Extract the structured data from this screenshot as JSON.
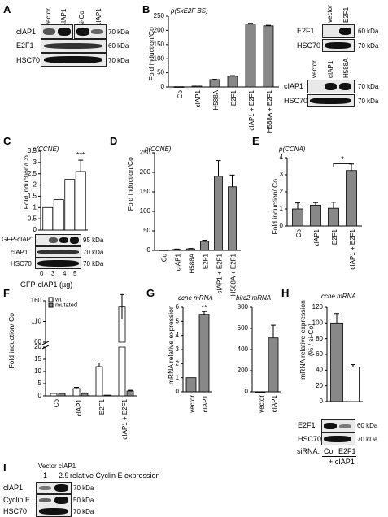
{
  "panels": {
    "A": {
      "letter": "A",
      "lanes": [
        "vector",
        "cIAP1",
        "si-Co",
        "si-cIAP1"
      ],
      "rows": [
        "cIAP1",
        "E2F1",
        "HSC70"
      ],
      "sizes": [
        "70 kDa",
        "60 kDa",
        "70 kDa"
      ]
    },
    "B": {
      "letter": "B",
      "annotation": "p(5xE2F BS)",
      "ylabel": "Fold induction/Co",
      "blot1": {
        "lanes": [
          "vector",
          "E2F1"
        ],
        "rows": [
          "E2F1",
          "HSC70"
        ],
        "sizes": [
          "60 kDa",
          "70 kDa"
        ]
      },
      "blot2": {
        "lanes": [
          "vector",
          "cIAP1",
          "H588A"
        ],
        "rows": [
          "cIAP1",
          "HSC70"
        ],
        "sizes": [
          "70 kDa",
          "70 kDa"
        ]
      }
    },
    "C": {
      "letter": "C",
      "annotation": "p(CCNE)",
      "ylabel": "Fold induction/Co",
      "xlabel": "GFP-cIAP1 (µg)",
      "blot": {
        "rows": [
          "GFP-cIAP1",
          "cIAP1",
          "HSC70"
        ],
        "sizes": [
          "95 kDa",
          "70 kDa",
          "70 kDa"
        ]
      }
    },
    "D": {
      "letter": "D",
      "annotation": "p(CCNE)",
      "ylabel": "Fold induction/Co"
    },
    "E": {
      "letter": "E",
      "annotation": "p(CCNA)",
      "ylabel": "Fold induction/ Co",
      "sig": "*"
    },
    "F": {
      "letter": "F",
      "ylabel": "Fold induction/ Co"
    },
    "G": {
      "letter": "G",
      "ylabel": "mRNA relative expression",
      "sub1": "ccne mRNA",
      "sub2": "birc2 mRNA",
      "sig": "**"
    },
    "H": {
      "letter": "H",
      "ylabel": "mRNA relative expression (% / si-Co)",
      "sub": "ccne mRNA",
      "blot": {
        "rows": [
          "E2F1",
          "HSC70"
        ],
        "sizes": [
          "60 kDa",
          "70 kDa"
        ]
      },
      "sirna_label": "siRNA:",
      "sirna_lanes": [
        "Co",
        "E2F1"
      ],
      "sirna_extra": "+ cIAP1"
    },
    "I": {
      "letter": "I",
      "header": "Vector cIAP1",
      "quant_values": [
        "1",
        "2.9"
      ],
      "quant_label": "relative Cyclin E expression",
      "rows": [
        "cIAP1",
        "Cyclin E",
        "HSC70"
      ],
      "sizes": [
        "70 kDa",
        "50 kDa",
        "70 kDa"
      ]
    }
  },
  "chart_data": [
    {
      "panel": "B",
      "type": "bar",
      "categories": [
        "Co",
        "cIAP1",
        "H588A",
        "E2F1",
        "cIAP1 + E2F1",
        "H588A + E2F1"
      ],
      "values": [
        1,
        3,
        26,
        38,
        222,
        216
      ],
      "errors": [
        0,
        0,
        1,
        2,
        3,
        2
      ],
      "ylabel": "Fold induction/Co",
      "ylim": [
        0,
        250
      ],
      "yticks": [
        0,
        50,
        100,
        150,
        200,
        250
      ]
    },
    {
      "panel": "C",
      "type": "bar",
      "categories": [
        "0",
        "3",
        "4",
        "5"
      ],
      "values": [
        1,
        1.35,
        2.25,
        2.6
      ],
      "errors": [
        0,
        0,
        0,
        0.5
      ],
      "ylabel": "Fold induction/Co",
      "xlabel": "GFP-cIAP1 (µg)",
      "ylim": [
        0,
        3.5
      ],
      "yticks": [
        0,
        0.5,
        1,
        1.5,
        2,
        2.5,
        3,
        3.5
      ],
      "annotations": [
        "***"
      ]
    },
    {
      "panel": "D",
      "type": "bar",
      "categories": [
        "Co",
        "cIAP1",
        "H588A",
        "E2F1",
        "cIAP1 + E2F1",
        "H588A + E2F1"
      ],
      "values": [
        1,
        2.5,
        4,
        23,
        190,
        163
      ],
      "errors": [
        0,
        1,
        1,
        3,
        40,
        30
      ],
      "ylabel": "Fold induction/Co",
      "ylim": [
        0,
        250
      ],
      "yticks": [
        0,
        50,
        100,
        150,
        200,
        250
      ]
    },
    {
      "panel": "E",
      "type": "bar",
      "categories": [
        "Co",
        "cIAP1",
        "E2F1",
        "cIAP1 + E2F1"
      ],
      "values": [
        1,
        1.22,
        1.04,
        3.25
      ],
      "errors": [
        0.35,
        0.15,
        0.35,
        0.38
      ],
      "ylabel": "Fold induction/ Co",
      "ylim": [
        0,
        4
      ],
      "yticks": [
        0,
        1,
        2,
        3,
        4
      ],
      "annotations": [
        "*"
      ]
    },
    {
      "panel": "F",
      "type": "bar",
      "categories": [
        "Co",
        "cIAP1",
        "E2F1",
        "cIAP1 + E2F1"
      ],
      "series": [
        {
          "name": "wt",
          "values": [
            1,
            3,
            12,
            145
          ],
          "errors": [
            0,
            0.5,
            1.5,
            30
          ]
        },
        {
          "name": "mutated",
          "values": [
            1,
            1,
            0.3,
            2
          ],
          "errors": [
            0,
            0.2,
            0,
            0.3
          ]
        }
      ],
      "ylabel": "Fold induction/ Co",
      "ylim": [
        0,
        175
      ],
      "yticks": [
        0,
        5,
        10,
        15,
        20,
        60,
        110,
        160
      ],
      "broken_axis": true
    },
    {
      "panel": "G1",
      "type": "bar",
      "title": "ccne mRNA",
      "categories": [
        "vector",
        "cIAP1"
      ],
      "values": [
        1,
        5.5
      ],
      "errors": [
        0,
        0.2
      ],
      "ylabel": "mRNA relative expression",
      "ylim": [
        0,
        6
      ],
      "yticks": [
        0,
        1,
        2,
        3,
        4,
        5,
        6
      ],
      "annotations": [
        "**"
      ]
    },
    {
      "panel": "G2",
      "type": "bar",
      "title": "birc2 mRNA",
      "categories": [
        "vector",
        "cIAP1"
      ],
      "values": [
        1,
        510
      ],
      "errors": [
        0,
        120
      ],
      "ylim": [
        0,
        800
      ],
      "yticks": [
        0,
        200,
        400,
        600,
        800
      ]
    },
    {
      "panel": "H",
      "type": "bar",
      "title": "ccne mRNA",
      "categories": [
        "Co",
        "E2F1"
      ],
      "values": [
        100,
        44
      ],
      "errors": [
        12,
        3
      ],
      "ylabel": "mRNA relative expression (% / si-Co)",
      "ylim": [
        0,
        120
      ],
      "yticks": [
        0,
        20,
        40,
        60,
        80,
        100,
        120
      ]
    }
  ]
}
